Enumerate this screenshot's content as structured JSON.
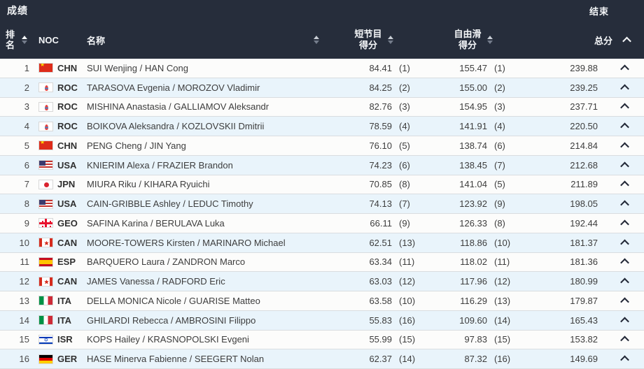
{
  "topbar": {
    "title": "成绩",
    "status": "结束"
  },
  "header": {
    "rank": "排名",
    "noc": "NOC",
    "name": "名称",
    "short_program_line1": "短节目",
    "short_program_line2": "得分",
    "free_skate_line1": "自由滑",
    "free_skate_line2": "得分",
    "total": "总分"
  },
  "icons": {
    "sort": "sort-arrows (up/down triangles)",
    "collapse": "chevron-up"
  },
  "colors": {
    "header_bg": "#262d3b",
    "header_text": "#f4f6f8",
    "row_even_bg": "#e9f4fb",
    "row_odd_bg": "#fcfcfb",
    "row_border": "#d9dde0",
    "row_text": "#3d3d3d"
  },
  "rows": [
    {
      "rank": "1",
      "noc": "CHN",
      "name": "SUI Wenjing / HAN Cong",
      "sp": "84.41",
      "sp_rank": "(1)",
      "fs": "155.47",
      "fs_rank": "(1)",
      "total": "239.88"
    },
    {
      "rank": "2",
      "noc": "ROC",
      "name": "TARASOVA Evgenia / MOROZOV Vladimir",
      "sp": "84.25",
      "sp_rank": "(2)",
      "fs": "155.00",
      "fs_rank": "(2)",
      "total": "239.25"
    },
    {
      "rank": "3",
      "noc": "ROC",
      "name": "MISHINA Anastasia / GALLIAMOV Aleksandr",
      "sp": "82.76",
      "sp_rank": "(3)",
      "fs": "154.95",
      "fs_rank": "(3)",
      "total": "237.71"
    },
    {
      "rank": "4",
      "noc": "ROC",
      "name": "BOIKOVA Aleksandra / KOZLOVSKII Dmitrii",
      "sp": "78.59",
      "sp_rank": "(4)",
      "fs": "141.91",
      "fs_rank": "(4)",
      "total": "220.50"
    },
    {
      "rank": "5",
      "noc": "CHN",
      "name": "PENG Cheng / JIN Yang",
      "sp": "76.10",
      "sp_rank": "(5)",
      "fs": "138.74",
      "fs_rank": "(6)",
      "total": "214.84"
    },
    {
      "rank": "6",
      "noc": "USA",
      "name": "KNIERIM Alexa / FRAZIER Brandon",
      "sp": "74.23",
      "sp_rank": "(6)",
      "fs": "138.45",
      "fs_rank": "(7)",
      "total": "212.68"
    },
    {
      "rank": "7",
      "noc": "JPN",
      "name": "MIURA Riku / KIHARA Ryuichi",
      "sp": "70.85",
      "sp_rank": "(8)",
      "fs": "141.04",
      "fs_rank": "(5)",
      "total": "211.89"
    },
    {
      "rank": "8",
      "noc": "USA",
      "name": "CAIN-GRIBBLE Ashley / LEDUC Timothy",
      "sp": "74.13",
      "sp_rank": "(7)",
      "fs": "123.92",
      "fs_rank": "(9)",
      "total": "198.05"
    },
    {
      "rank": "9",
      "noc": "GEO",
      "name": "SAFINA Karina / BERULAVA Luka",
      "sp": "66.11",
      "sp_rank": "(9)",
      "fs": "126.33",
      "fs_rank": "(8)",
      "total": "192.44"
    },
    {
      "rank": "10",
      "noc": "CAN",
      "name": "MOORE-TOWERS Kirsten / MARINARO Michael",
      "sp": "62.51",
      "sp_rank": "(13)",
      "fs": "118.86",
      "fs_rank": "(10)",
      "total": "181.37"
    },
    {
      "rank": "11",
      "noc": "ESP",
      "name": "BARQUERO Laura / ZANDRON Marco",
      "sp": "63.34",
      "sp_rank": "(11)",
      "fs": "118.02",
      "fs_rank": "(11)",
      "total": "181.36"
    },
    {
      "rank": "12",
      "noc": "CAN",
      "name": "JAMES Vanessa / RADFORD Eric",
      "sp": "63.03",
      "sp_rank": "(12)",
      "fs": "117.96",
      "fs_rank": "(12)",
      "total": "180.99"
    },
    {
      "rank": "13",
      "noc": "ITA",
      "name": "DELLA MONICA Nicole / GUARISE Matteo",
      "sp": "63.58",
      "sp_rank": "(10)",
      "fs": "116.29",
      "fs_rank": "(13)",
      "total": "179.87"
    },
    {
      "rank": "14",
      "noc": "ITA",
      "name": "GHILARDI Rebecca / AMBROSINI Filippo",
      "sp": "55.83",
      "sp_rank": "(16)",
      "fs": "109.60",
      "fs_rank": "(14)",
      "total": "165.43"
    },
    {
      "rank": "15",
      "noc": "ISR",
      "name": "KOPS Hailey / KRASNOPOLSKI Evgeni",
      "sp": "55.99",
      "sp_rank": "(15)",
      "fs": "97.83",
      "fs_rank": "(15)",
      "total": "153.82"
    },
    {
      "rank": "16",
      "noc": "GER",
      "name": "HASE Minerva Fabienne / SEEGERT Nolan",
      "sp": "62.37",
      "sp_rank": "(14)",
      "fs": "87.32",
      "fs_rank": "(16)",
      "total": "149.69"
    }
  ]
}
